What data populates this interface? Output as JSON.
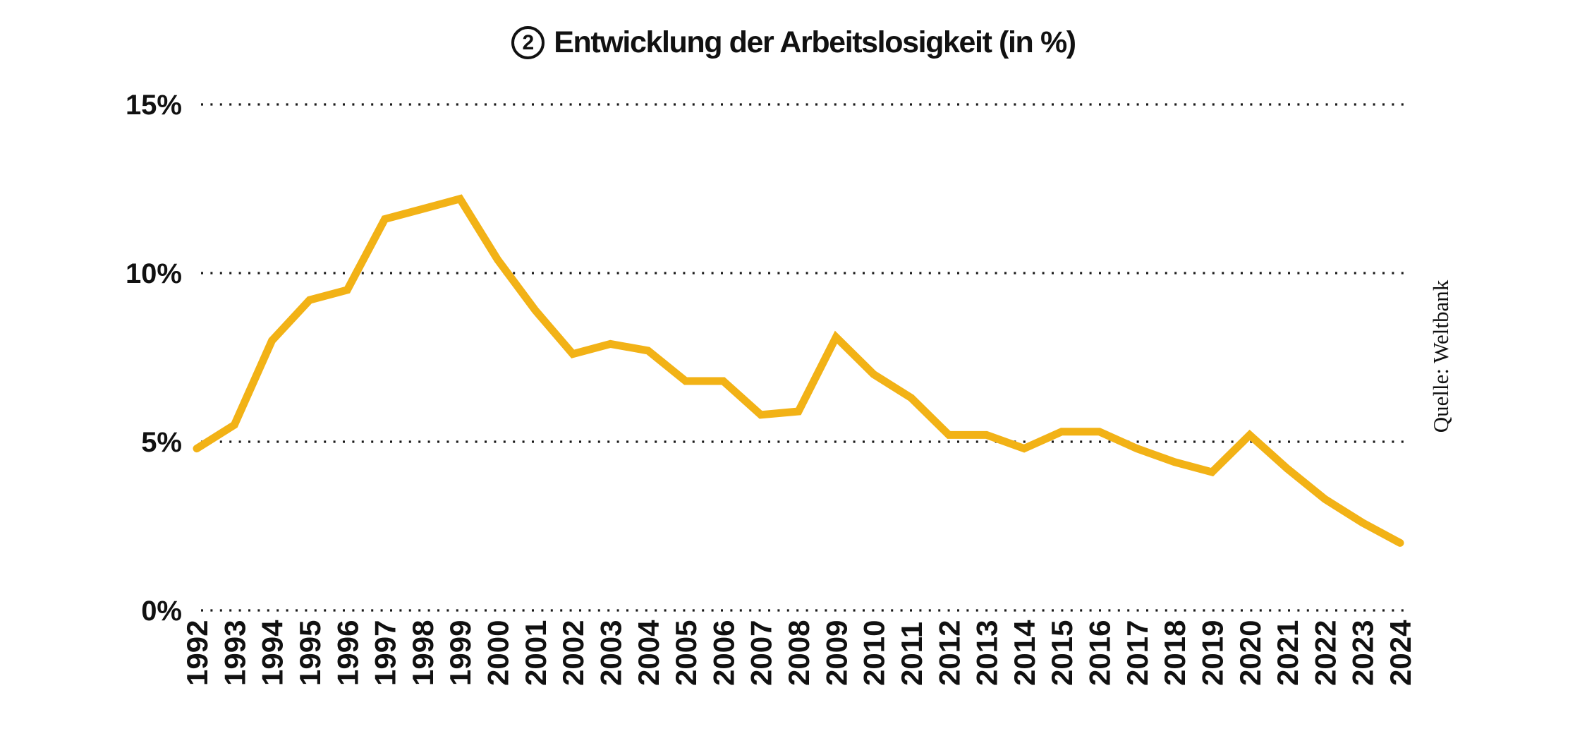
{
  "header": {
    "badge_number": "2",
    "title": "Entwicklung der Arbeitslosigkeit (in %)"
  },
  "source": {
    "label": "Quelle: Weltbank"
  },
  "colors": {
    "line": "#F2B216",
    "text": "#111111",
    "grid_dots": "#1A1A1A",
    "background": "#FFFFFF"
  },
  "chart_data": {
    "type": "line",
    "title": "Entwicklung der Arbeitslosigkeit (in %)",
    "x": [
      1992,
      1993,
      1994,
      1995,
      1996,
      1997,
      1998,
      1999,
      2000,
      2001,
      2002,
      2003,
      2004,
      2005,
      2006,
      2007,
      2008,
      2009,
      2010,
      2011,
      2012,
      2013,
      2014,
      2015,
      2016,
      2017,
      2018,
      2019,
      2020,
      2021,
      2022,
      2023,
      2024
    ],
    "values": [
      4.8,
      5.5,
      8.0,
      9.2,
      9.5,
      11.6,
      11.9,
      12.2,
      10.4,
      8.9,
      7.6,
      7.9,
      7.7,
      6.8,
      6.8,
      5.8,
      5.9,
      8.1,
      7.0,
      6.3,
      5.2,
      5.2,
      4.8,
      5.3,
      5.3,
      4.8,
      4.4,
      4.1,
      5.2,
      4.2,
      3.3,
      2.6,
      2.0
    ],
    "unit": "%",
    "xlabel": "",
    "ylabel": "",
    "ylim": [
      0,
      15
    ],
    "yticks": [
      0,
      5,
      10,
      15
    ],
    "ytick_labels": [
      "0%",
      "5%",
      "10%",
      "15%"
    ],
    "grid": "dotted horizontal gridlines",
    "legend": "none",
    "line_color": "#F2B216",
    "source": "Quelle: Weltbank"
  }
}
